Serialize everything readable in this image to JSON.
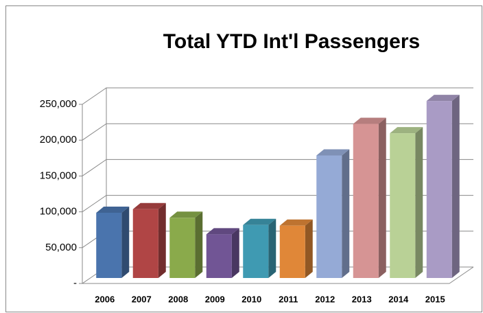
{
  "chart_data": {
    "type": "bar3d",
    "title": "Total YTD Int'l Passengers",
    "categories": [
      "2006",
      "2007",
      "2008",
      "2009",
      "2010",
      "2011",
      "2012",
      "2013",
      "2014",
      "2015"
    ],
    "values": [
      91000,
      96000,
      84000,
      61000,
      74000,
      73000,
      171000,
      215000,
      202000,
      247000
    ],
    "colors": [
      "#4a74ad",
      "#b04545",
      "#8aaa4b",
      "#715595",
      "#3f9ab2",
      "#e08738",
      "#95aad6",
      "#d69494",
      "#b9d196",
      "#a99bc5"
    ],
    "ylim": [
      0,
      250000
    ],
    "yticks": [
      {
        "value": 0,
        "label": "-"
      },
      {
        "value": 50000,
        "label": "50,000"
      },
      {
        "value": 100000,
        "label": "100,000"
      },
      {
        "value": 150000,
        "label": "150,000"
      },
      {
        "value": 200000,
        "label": "200,000"
      },
      {
        "value": 250000,
        "label": "250,000"
      }
    ],
    "grid": true
  }
}
